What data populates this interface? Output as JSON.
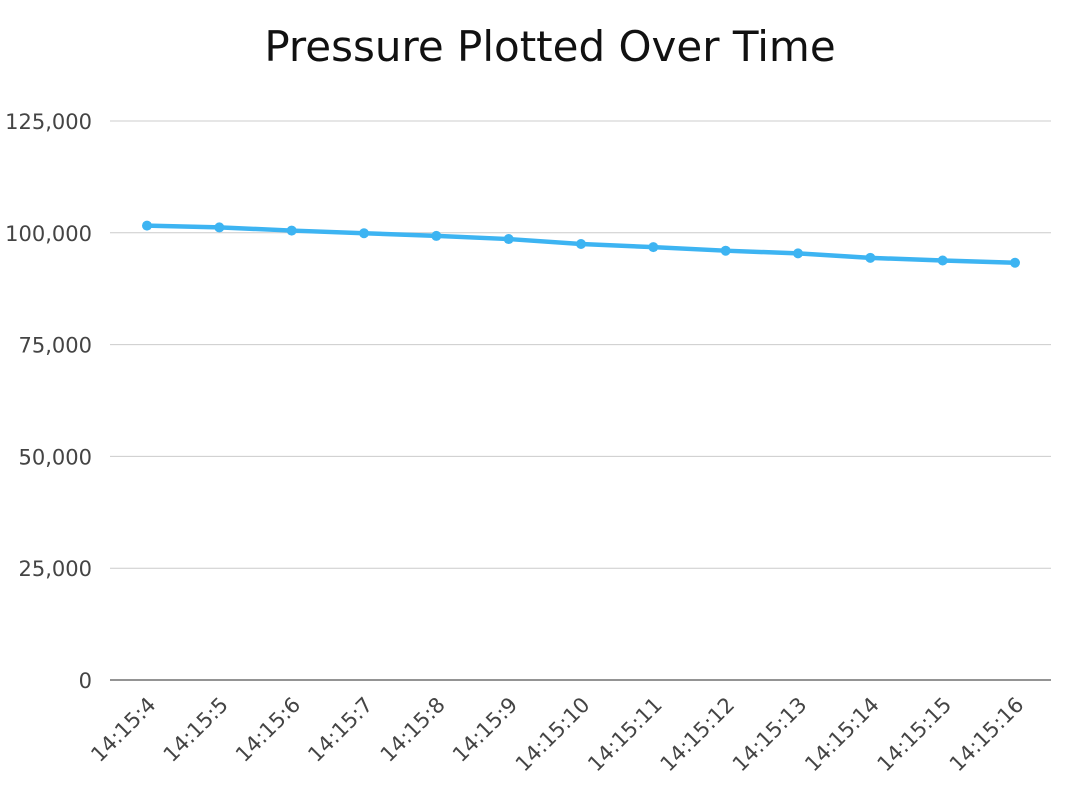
{
  "chart_data": {
    "type": "line",
    "title": "Pressure Plotted Over Time",
    "xlabel": "",
    "ylabel": "",
    "categories": [
      "14:15:4",
      "14:15:5",
      "14:15:6",
      "14:15:7",
      "14:15:8",
      "14:15:9",
      "14:15:10",
      "14:15:11",
      "14:15:12",
      "14:15:13",
      "14:15:14",
      "14:15:15",
      "14:15:16"
    ],
    "series": [
      {
        "values": [
          101600,
          101200,
          100500,
          99900,
          99300,
          98600,
          97500,
          96800,
          96000,
          95400,
          94400,
          93800,
          93300
        ]
      }
    ],
    "ylim": [
      0,
      125000
    ],
    "yticks": [
      0,
      25000,
      50000,
      75000,
      100000,
      125000
    ],
    "ytick_labels": [
      "0",
      "25,000",
      "50,000",
      "75,000",
      "100,000",
      "125,000"
    ],
    "grid": true,
    "legend": "none",
    "line_color": "#3db4f2"
  }
}
